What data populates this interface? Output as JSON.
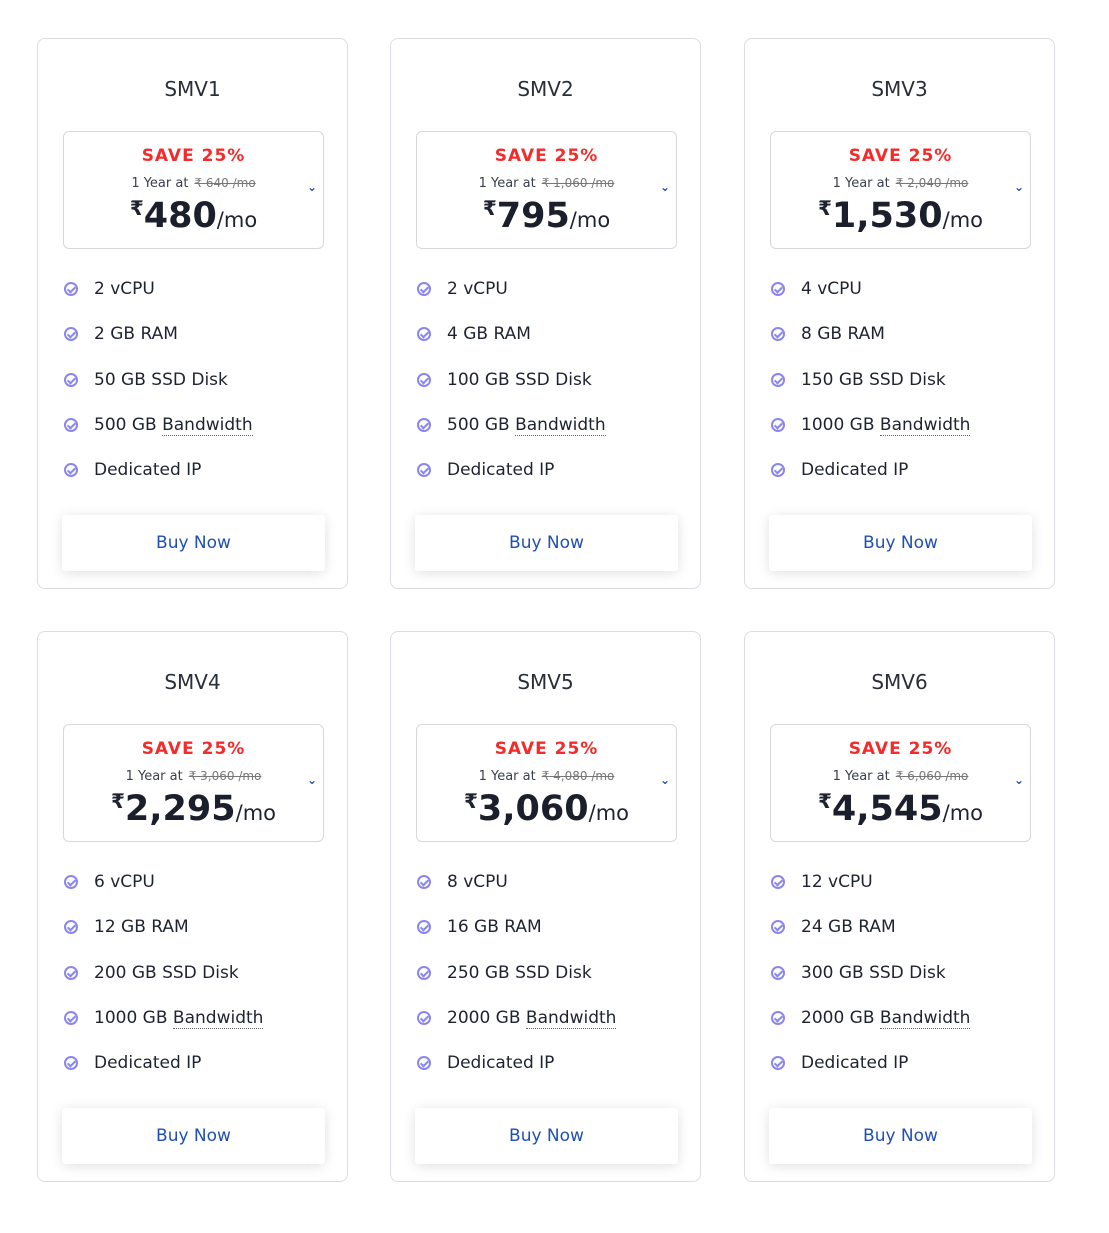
{
  "plans": [
    {
      "name": "SMV1",
      "save": "SAVE 25%",
      "year_label": "1 Year at",
      "old_price": "₹ 640 /mo",
      "currency": "₹",
      "price": "480",
      "per": "/mo",
      "features": [
        "2 vCPU",
        "2 GB RAM",
        "50 GB SSD Disk"
      ],
      "bw_amount": "500 GB",
      "bw_label": "Bandwidth",
      "ip": "Dedicated IP",
      "button": "Buy Now"
    },
    {
      "name": "SMV2",
      "save": "SAVE 25%",
      "year_label": "1 Year at",
      "old_price": "₹ 1,060 /mo",
      "currency": "₹",
      "price": "795",
      "per": "/mo",
      "features": [
        "2 vCPU",
        "4 GB RAM",
        "100 GB SSD Disk"
      ],
      "bw_amount": "500 GB",
      "bw_label": "Bandwidth",
      "ip": "Dedicated IP",
      "button": "Buy Now"
    },
    {
      "name": "SMV3",
      "save": "SAVE 25%",
      "year_label": "1 Year at",
      "old_price": "₹ 2,040 /mo",
      "currency": "₹",
      "price": "1,530",
      "per": "/mo",
      "features": [
        "4 vCPU",
        "8 GB RAM",
        "150 GB SSD Disk"
      ],
      "bw_amount": "1000 GB",
      "bw_label": "Bandwidth",
      "ip": "Dedicated IP",
      "button": "Buy Now"
    },
    {
      "name": "SMV4",
      "save": "SAVE 25%",
      "year_label": "1 Year at",
      "old_price": "₹ 3,060 /mo",
      "currency": "₹",
      "price": "2,295",
      "per": "/mo",
      "features": [
        "6 vCPU",
        "12 GB RAM",
        "200 GB SSD Disk"
      ],
      "bw_amount": "1000 GB",
      "bw_label": "Bandwidth",
      "ip": "Dedicated IP",
      "button": "Buy Now"
    },
    {
      "name": "SMV5",
      "save": "SAVE 25%",
      "year_label": "1 Year at",
      "old_price": "₹ 4,080 /mo",
      "currency": "₹",
      "price": "3,060",
      "per": "/mo",
      "features": [
        "8 vCPU",
        "16 GB RAM",
        "250 GB SSD Disk"
      ],
      "bw_amount": "2000 GB",
      "bw_label": "Bandwidth",
      "ip": "Dedicated IP",
      "button": "Buy Now"
    },
    {
      "name": "SMV6",
      "save": "SAVE 25%",
      "year_label": "1 Year at",
      "old_price": "₹ 6,060 /mo",
      "currency": "₹",
      "price": "4,545",
      "per": "/mo",
      "features": [
        "12 vCPU",
        "24 GB RAM",
        "300 GB SSD Disk"
      ],
      "bw_amount": "2000 GB",
      "bw_label": "Bandwidth",
      "ip": "Dedicated IP",
      "button": "Buy Now"
    }
  ],
  "colors": {
    "save": "#f32b2b",
    "accent": "#1f4fb3",
    "check": "#8a86f0"
  },
  "icons": {
    "feature": "check-circle-icon",
    "expand": "chevron-down-icon"
  }
}
